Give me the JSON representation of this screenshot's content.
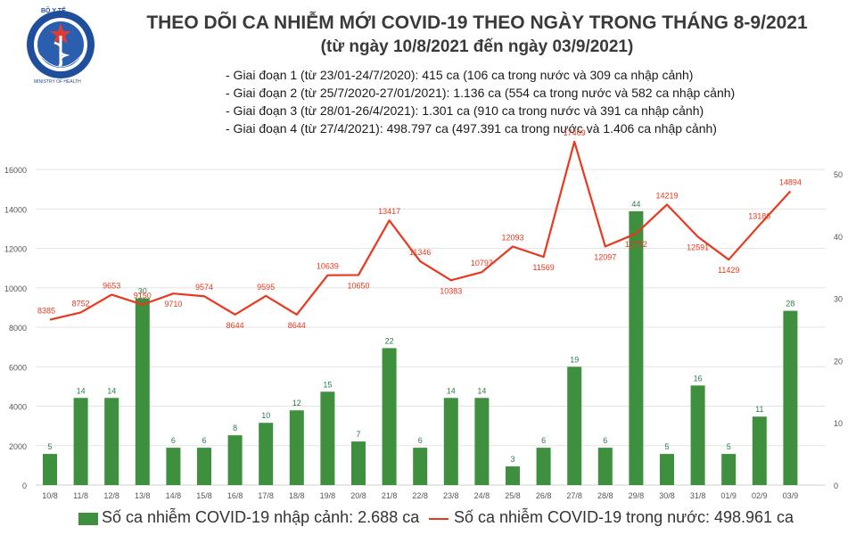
{
  "logo": {
    "top_text": "BỘ Y TẾ",
    "bottom_text": "MINISTRY OF HEALTH"
  },
  "header": {
    "title": "THEO DÕI CA NHIỄM MỚI COVID-19 THEO NGÀY TRONG THÁNG 8-9/2021",
    "subtitle": "(từ ngày 10/8/2021 đến ngày 03/9/2021)"
  },
  "notes": [
    "- Giai đoạn 1 (từ 23/01-24/7/2020): 415 ca (106 ca trong nước và 309 ca nhập cảnh)",
    "- Giai đoạn 2 (từ 25/7/2020-27/01/2021): 1.136 ca (554 ca trong nước và 582 ca nhập cảnh)",
    "- Giai đoạn 3 (từ 28/01-26/4/2021): 1.301 ca (910 ca trong nước và 391 ca nhập cảnh)",
    "- Giai đoạn 4 (từ 27/4/2021): 498.797 ca (497.391 ca trong nước và 1.406 ca nhập cảnh)"
  ],
  "colors": {
    "bar": "#3e8f3e",
    "line": "#e8381e",
    "bar_label": "#2e7d4a",
    "axis_text": "#555555"
  },
  "chart_data": {
    "type": "bar",
    "categories": [
      "10/8",
      "11/8",
      "12/8",
      "13/8",
      "14/8",
      "15/8",
      "16/8",
      "17/8",
      "18/8",
      "19/8",
      "20/8",
      "21/8",
      "22/8",
      "23/8",
      "24/8",
      "25/8",
      "26/8",
      "27/8",
      "28/8",
      "29/8",
      "30/8",
      "31/8",
      "01/9",
      "02/9",
      "03/9"
    ],
    "series": [
      {
        "name": "Số ca nhiễm COVID-19 nhập cảnh: 2.688 ca",
        "type": "bar",
        "axis": "right",
        "values": [
          5,
          14,
          14,
          30,
          6,
          6,
          8,
          10,
          12,
          15,
          7,
          22,
          6,
          14,
          14,
          3,
          6,
          19,
          6,
          44,
          5,
          16,
          5,
          11,
          28
        ]
      },
      {
        "name": "Số ca nhiễm COVID-19 trong nước: 498.961 ca",
        "type": "line",
        "axis": "left",
        "values": [
          8385,
          8752,
          9653,
          9150,
          9710,
          9574,
          8644,
          9595,
          8644,
          10639,
          10650,
          13417,
          11346,
          10383,
          10797,
          12093,
          11569,
          17409,
          12097,
          12752,
          14219,
          12591,
          11429,
          13186,
          14894
        ]
      }
    ],
    "left_axis": {
      "ylim": [
        0,
        16000
      ],
      "ticks": [
        0,
        2000,
        4000,
        6000,
        8000,
        10000,
        12000,
        14000,
        16000
      ]
    },
    "right_axis": {
      "ylim": [
        0,
        50
      ],
      "ticks": [
        0,
        10,
        20,
        30,
        40,
        50
      ]
    },
    "grid": true,
    "legend": "bottom"
  }
}
